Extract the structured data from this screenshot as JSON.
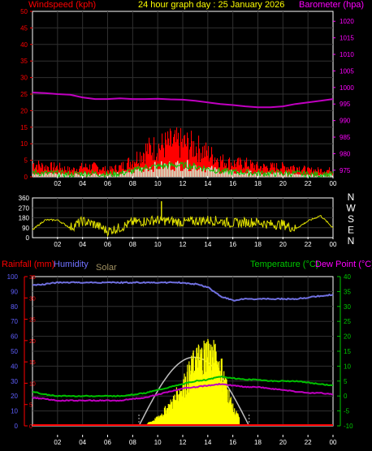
{
  "header": {
    "windspeed_label": "Windspeed (kph)",
    "title": "24 hour graph day : 25 January 2026",
    "barometer_label": "Barometer (hpa)"
  },
  "colors": {
    "wind_axis": "#ff0000",
    "baro_axis": "#ff00ff",
    "title": "#ffff00",
    "wind_bar": "#ff0000",
    "wind_avg": "#00c800",
    "wind_light": "#d0f0d0",
    "baro_line": "#c000c0",
    "dir_line": "#e0e000",
    "hum_axis": "#6060ff",
    "hum_line": "#7070e0",
    "temp_axis": "#00c800",
    "temp_line": "#00c000",
    "dew_line": "#c000c0",
    "solar_fill": "#ffff00",
    "solar_line": "#c0c0c0",
    "grid": "#303030",
    "axis": "#ffffff"
  },
  "x_ticks": [
    "02",
    "04",
    "06",
    "08",
    "10",
    "12",
    "14",
    "16",
    "18",
    "20",
    "22",
    "00"
  ],
  "top_panel": {
    "wind_ticks": [
      "0",
      "5",
      "10",
      "15",
      "20",
      "25",
      "30",
      "35",
      "40",
      "45",
      "50"
    ],
    "baro_ticks": [
      "975",
      "980",
      "985",
      "990",
      "995",
      "1000",
      "1005",
      "1010",
      "1015",
      "1020"
    ]
  },
  "dir_panel": {
    "ticks": [
      "0",
      "90",
      "180",
      "270",
      "360"
    ],
    "compass": [
      "N",
      "W",
      "S",
      "E",
      "N"
    ]
  },
  "bottom_panel": {
    "rainfall_label": "Rainfall (mm)",
    "humidity_label": "Humidity",
    "solar_label": "Solar",
    "temp_label": "Temperature (°C)",
    "dew_label": "Dew Point (°C)",
    "hum_ticks": [
      "0",
      "10",
      "20",
      "30",
      "40",
      "50",
      "60",
      "70",
      "80",
      "90",
      "100"
    ],
    "rain_ticks": [
      "0",
      "5",
      "10",
      "15",
      "20",
      "25",
      "30",
      "35"
    ],
    "temp_ticks": [
      "-10",
      "-5",
      "0",
      "5",
      "10",
      "15",
      "20",
      "25",
      "30",
      "35",
      "40"
    ]
  },
  "chart_data": [
    {
      "type": "bar",
      "x": [
        0,
        1,
        2,
        3,
        4,
        5,
        6,
        7,
        8,
        9,
        10,
        11,
        12,
        13,
        14,
        15,
        16,
        17,
        18,
        19,
        20,
        21,
        22,
        23,
        24
      ],
      "series": [
        {
          "name": "Windspeed (kph)",
          "axis": "left",
          "ylim": [
            0,
            50
          ],
          "values": [
            4,
            3,
            3,
            2,
            3,
            3,
            2,
            3,
            5,
            8,
            9,
            10,
            10,
            9,
            7,
            5,
            4,
            4,
            3,
            3,
            3,
            3,
            2,
            2,
            2
          ]
        },
        {
          "name": "Barometer (hpa)",
          "axis": "right",
          "type": "line",
          "ylim": [
            973,
            1023
          ],
          "values": [
            998.5,
            998.3,
            998,
            997.8,
            997,
            996.5,
            996.5,
            996.7,
            996.5,
            996.5,
            996.6,
            996.4,
            996.3,
            996,
            995.5,
            995,
            994.7,
            994.3,
            994,
            994,
            994.3,
            995,
            995.5,
            996,
            996.5
          ]
        }
      ]
    },
    {
      "type": "line",
      "x": [
        0,
        1,
        2,
        3,
        4,
        5,
        6,
        7,
        8,
        9,
        10,
        11,
        12,
        13,
        14,
        15,
        16,
        17,
        18,
        19,
        20,
        21,
        22,
        23,
        24
      ],
      "ylim": [
        0,
        360
      ],
      "series": [
        {
          "name": "Wind direction",
          "values": [
            70,
            160,
            160,
            90,
            150,
            120,
            60,
            90,
            140,
            150,
            160,
            150,
            140,
            150,
            160,
            150,
            130,
            140,
            140,
            120,
            120,
            80,
            150,
            200,
            90
          ]
        }
      ]
    },
    {
      "type": "line",
      "x": [
        0,
        1,
        2,
        3,
        4,
        5,
        6,
        7,
        8,
        9,
        10,
        11,
        12,
        13,
        14,
        15,
        16,
        17,
        18,
        19,
        20,
        21,
        22,
        23,
        24
      ],
      "series": [
        {
          "name": "Humidity",
          "axis": "left",
          "ylim": [
            0,
            100
          ],
          "values": [
            94,
            95,
            96,
            96,
            96,
            96,
            96,
            96,
            96,
            96,
            96,
            96,
            96,
            95,
            93,
            87,
            84,
            85,
            85,
            85,
            85,
            85,
            86,
            87,
            88
          ]
        },
        {
          "name": "Temperature (°C)",
          "axis": "right",
          "ylim": [
            -10,
            40
          ],
          "values": [
            1.5,
            0.5,
            0,
            0,
            0,
            0,
            0,
            0,
            0.5,
            1,
            2,
            3,
            4,
            5,
            5.5,
            6.5,
            6,
            5.5,
            5.5,
            5,
            5,
            5,
            4.5,
            4,
            3.5
          ]
        },
        {
          "name": "Dew Point (°C)",
          "axis": "right",
          "ylim": [
            -10,
            40
          ],
          "values": [
            -0.5,
            -1,
            -1.5,
            -1.5,
            -1.5,
            -1.5,
            -1.5,
            -1.5,
            -1,
            -0.5,
            0.5,
            1.5,
            2.5,
            3,
            3.5,
            4,
            3.5,
            3,
            3,
            2.5,
            2,
            1.5,
            1,
            1,
            0.5
          ]
        },
        {
          "name": "Solar",
          "axis": "none",
          "values": [
            0,
            0,
            0,
            0,
            0,
            0,
            0,
            0,
            0,
            5,
            30,
            80,
            150,
            240,
            280,
            220,
            60,
            0,
            0,
            0,
            0,
            0,
            0,
            0,
            0
          ]
        },
        {
          "name": "Rainfall (mm)",
          "axis": "rain",
          "ylim": [
            0,
            35
          ],
          "values": [
            0,
            0,
            0,
            0,
            0,
            0,
            0,
            0,
            0,
            0,
            0,
            0,
            0,
            0,
            0,
            0,
            0,
            0,
            0,
            0,
            0,
            0,
            0,
            0,
            0
          ]
        }
      ]
    }
  ]
}
